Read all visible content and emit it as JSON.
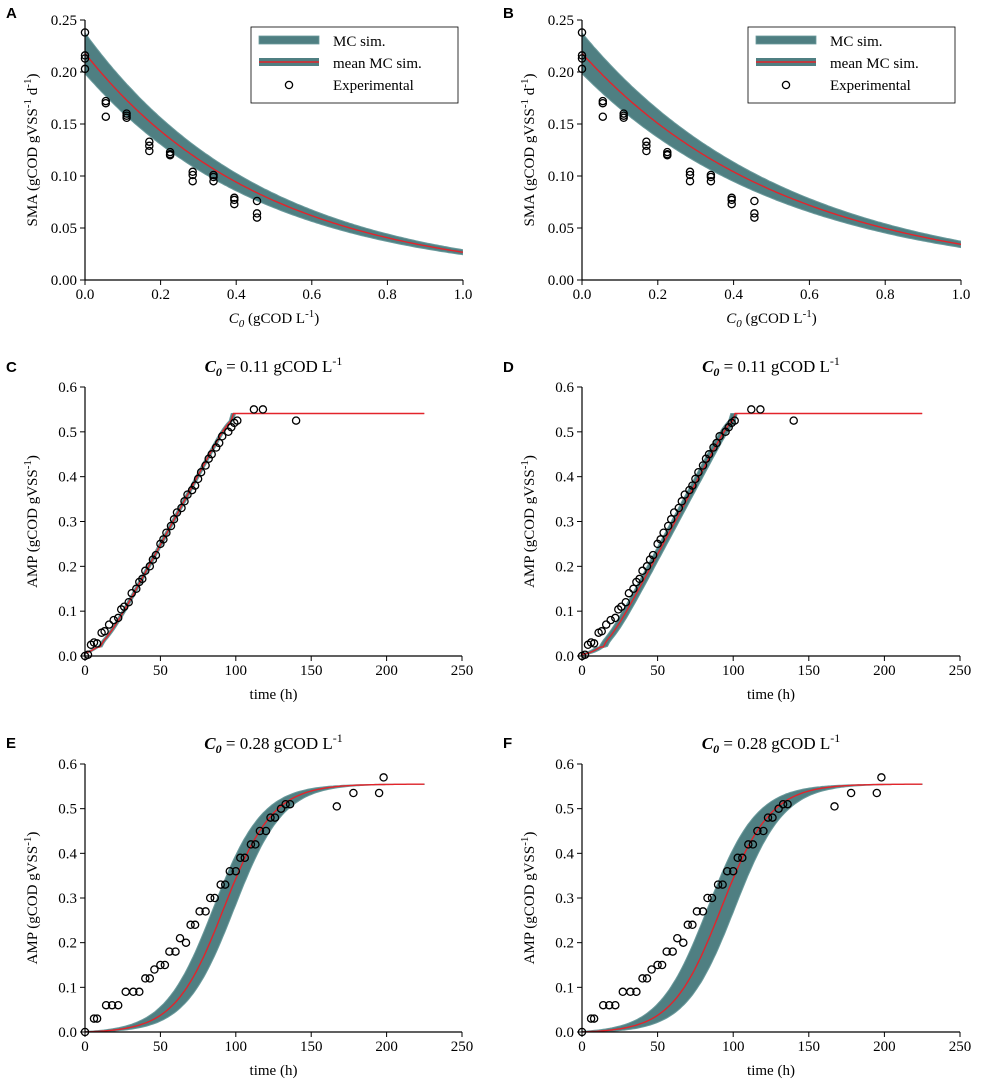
{
  "chart_data": [
    {
      "panel": "A",
      "type": "line",
      "title": "",
      "xlabel": {
        "sym": "C",
        "sub": "0",
        "unit": " (gCOD L",
        "sup": "-1",
        "end": ")"
      },
      "ylabel": {
        "base": "SMA (gCOD gVSS",
        "sup1": "-1",
        "mid": " d",
        "sup2": "-1",
        "end": ")"
      },
      "xlim": [
        0,
        1.0
      ],
      "ylim": [
        0,
        0.25
      ],
      "xticks": [
        "0.0",
        "0.2",
        "0.4",
        "0.6",
        "0.8",
        "1.0"
      ],
      "yticks": [
        "0.00",
        "0.05",
        "0.10",
        "0.15",
        "0.20",
        "0.25"
      ],
      "legend": [
        "MC sim.",
        "mean MC sim.",
        "Experimental"
      ],
      "model": {
        "kind": "decay",
        "a": 0.218,
        "k": 2.1,
        "band": 0.09
      },
      "experimental": {
        "x": [
          0.0,
          0.0,
          0.0,
          0.0,
          0.055,
          0.055,
          0.055,
          0.11,
          0.11,
          0.11,
          0.17,
          0.17,
          0.17,
          0.225,
          0.225,
          0.225,
          0.285,
          0.285,
          0.285,
          0.34,
          0.34,
          0.34,
          0.395,
          0.395,
          0.395,
          0.455,
          0.455,
          0.455
        ],
        "y": [
          0.238,
          0.216,
          0.213,
          0.203,
          0.172,
          0.17,
          0.157,
          0.16,
          0.158,
          0.156,
          0.133,
          0.129,
          0.124,
          0.123,
          0.121,
          0.12,
          0.104,
          0.101,
          0.095,
          0.101,
          0.099,
          0.095,
          0.079,
          0.077,
          0.073,
          0.076,
          0.064,
          0.06
        ]
      }
    },
    {
      "panel": "B",
      "type": "line",
      "title": "",
      "xlabel": {
        "sym": "C",
        "sub": "0",
        "unit": " (gCOD L",
        "sup": "-1",
        "end": ")"
      },
      "ylabel": {
        "base": "SMA (gCOD gVSS",
        "sup1": "-1",
        "mid": " d",
        "sup2": "-1",
        "end": ")"
      },
      "xlim": [
        0,
        1.0
      ],
      "ylim": [
        0,
        0.25
      ],
      "xticks": [
        "0.0",
        "0.2",
        "0.4",
        "0.6",
        "0.8",
        "1.0"
      ],
      "yticks": [
        "0.00",
        "0.05",
        "0.10",
        "0.15",
        "0.20",
        "0.25"
      ],
      "legend": [
        "MC sim.",
        "mean MC sim.",
        "Experimental"
      ],
      "model": {
        "kind": "decay",
        "a": 0.218,
        "k": 1.85,
        "band": 0.09
      },
      "experimental": {
        "x": [
          0.0,
          0.0,
          0.0,
          0.0,
          0.055,
          0.055,
          0.055,
          0.11,
          0.11,
          0.11,
          0.17,
          0.17,
          0.17,
          0.225,
          0.225,
          0.225,
          0.285,
          0.285,
          0.285,
          0.34,
          0.34,
          0.34,
          0.395,
          0.395,
          0.395,
          0.455,
          0.455,
          0.455
        ],
        "y": [
          0.238,
          0.216,
          0.213,
          0.203,
          0.172,
          0.17,
          0.157,
          0.16,
          0.158,
          0.156,
          0.133,
          0.129,
          0.124,
          0.123,
          0.121,
          0.12,
          0.104,
          0.101,
          0.095,
          0.101,
          0.099,
          0.095,
          0.079,
          0.077,
          0.073,
          0.076,
          0.064,
          0.06
        ]
      }
    },
    {
      "panel": "C",
      "type": "line",
      "title": {
        "sym": "C",
        "sub": "0",
        "rest": " = 0.11 gCOD L",
        "sup": "-1"
      },
      "xlabel": {
        "plain": "time (h)"
      },
      "ylabel": {
        "base": "AMP (gCOD gVSS",
        "sup1": "-1",
        "end": ")"
      },
      "xlim": [
        0,
        250
      ],
      "ylim": [
        0,
        0.6
      ],
      "xticks": [
        "0",
        "50",
        "100",
        "150",
        "200",
        "250"
      ],
      "yticks": [
        "0.0",
        "0.1",
        "0.2",
        "0.3",
        "0.4",
        "0.5",
        "0.6"
      ],
      "model": {
        "kind": "sigmoid",
        "plateau": 0.541,
        "rate": 0.0062,
        "lag": 10,
        "sat": 93,
        "xmax": 225,
        "band": 1.2
      },
      "experimental": {
        "x": [
          0,
          2,
          4,
          6,
          8,
          11,
          13,
          16,
          19,
          22,
          24,
          26,
          29,
          31,
          34,
          36,
          38,
          40,
          43,
          45,
          47,
          50,
          52,
          54,
          57,
          59,
          61,
          64,
          66,
          68,
          71,
          73,
          75,
          77,
          80,
          82,
          84,
          87,
          89,
          91,
          95,
          97,
          99,
          101,
          112,
          118,
          140
        ],
        "y": [
          0.0,
          0.003,
          0.025,
          0.03,
          0.028,
          0.052,
          0.055,
          0.07,
          0.08,
          0.085,
          0.104,
          0.11,
          0.12,
          0.14,
          0.15,
          0.165,
          0.172,
          0.19,
          0.2,
          0.215,
          0.225,
          0.25,
          0.26,
          0.275,
          0.29,
          0.305,
          0.32,
          0.33,
          0.345,
          0.36,
          0.37,
          0.38,
          0.395,
          0.41,
          0.425,
          0.44,
          0.45,
          0.465,
          0.475,
          0.49,
          0.5,
          0.51,
          0.52,
          0.525,
          0.55,
          0.55,
          0.525
        ]
      }
    },
    {
      "panel": "D",
      "type": "line",
      "title": {
        "sym": "C",
        "sub": "0",
        "rest": " = 0.11 gCOD L",
        "sup": "-1"
      },
      "xlabel": {
        "plain": "time (h)"
      },
      "ylabel": {
        "base": "AMP (gCOD gVSS",
        "sup1": "-1",
        "end": ")"
      },
      "xlim": [
        0,
        250
      ],
      "ylim": [
        0,
        0.6
      ],
      "xticks": [
        "0",
        "50",
        "100",
        "150",
        "200",
        "250"
      ],
      "yticks": [
        "0.0",
        "0.1",
        "0.2",
        "0.3",
        "0.4",
        "0.5",
        "0.6"
      ],
      "model": {
        "kind": "sigmoid",
        "plateau": 0.541,
        "rate": 0.0063,
        "lag": 14,
        "sat": 102,
        "xmax": 225,
        "band": 2.6
      },
      "experimental": {
        "x": [
          0,
          2,
          4,
          6,
          8,
          11,
          13,
          16,
          19,
          22,
          24,
          26,
          29,
          31,
          34,
          36,
          38,
          40,
          43,
          45,
          47,
          50,
          52,
          54,
          57,
          59,
          61,
          64,
          66,
          68,
          71,
          73,
          75,
          77,
          80,
          82,
          84,
          87,
          89,
          91,
          95,
          97,
          99,
          101,
          112,
          118,
          140
        ],
        "y": [
          0.0,
          0.003,
          0.025,
          0.03,
          0.028,
          0.052,
          0.055,
          0.07,
          0.08,
          0.085,
          0.104,
          0.11,
          0.12,
          0.14,
          0.15,
          0.165,
          0.172,
          0.19,
          0.2,
          0.215,
          0.225,
          0.25,
          0.26,
          0.275,
          0.29,
          0.305,
          0.32,
          0.33,
          0.345,
          0.36,
          0.37,
          0.38,
          0.395,
          0.41,
          0.425,
          0.44,
          0.45,
          0.465,
          0.475,
          0.49,
          0.5,
          0.51,
          0.52,
          0.525,
          0.55,
          0.55,
          0.525
        ]
      }
    },
    {
      "panel": "E",
      "type": "line",
      "title": {
        "sym": "C",
        "sub": "0",
        "rest": " = 0.28 gCOD L",
        "sup": "-1"
      },
      "xlabel": {
        "plain": "time (h)"
      },
      "ylabel": {
        "base": "AMP (gCOD gVSS",
        "sup1": "-1",
        "end": ")"
      },
      "xlim": [
        0,
        250
      ],
      "ylim": [
        0,
        0.6
      ],
      "xticks": [
        "0",
        "50",
        "100",
        "150",
        "200",
        "250"
      ],
      "yticks": [
        "0.0",
        "0.1",
        "0.2",
        "0.3",
        "0.4",
        "0.5",
        "0.6"
      ],
      "model": {
        "kind": "smooth",
        "plateau": 0.555,
        "mid": 92,
        "width": 75,
        "start": 12,
        "xmax": 225,
        "band": 7
      },
      "experimental": {
        "x": [
          0,
          6,
          8,
          14,
          18,
          22,
          27,
          32,
          36,
          40,
          43,
          46,
          50,
          53,
          56,
          60,
          63,
          67,
          70,
          73,
          76,
          80,
          83,
          86,
          90,
          93,
          96,
          100,
          103,
          106,
          110,
          113,
          116,
          120,
          123,
          126,
          130,
          133,
          136,
          167,
          178,
          195,
          198
        ],
        "y": [
          0.0,
          0.03,
          0.03,
          0.06,
          0.06,
          0.06,
          0.09,
          0.09,
          0.09,
          0.12,
          0.12,
          0.14,
          0.15,
          0.15,
          0.18,
          0.18,
          0.21,
          0.2,
          0.24,
          0.24,
          0.27,
          0.27,
          0.3,
          0.3,
          0.33,
          0.33,
          0.36,
          0.36,
          0.39,
          0.39,
          0.42,
          0.42,
          0.45,
          0.45,
          0.48,
          0.48,
          0.5,
          0.51,
          0.51,
          0.505,
          0.535,
          0.535,
          0.57
        ]
      }
    },
    {
      "panel": "F",
      "type": "line",
      "title": {
        "sym": "C",
        "sub": "0",
        "rest": " = 0.28 gCOD L",
        "sup": "-1"
      },
      "xlabel": {
        "plain": "time (h)"
      },
      "ylabel": {
        "base": "AMP (gCOD gVSS",
        "sup1": "-1",
        "end": ")"
      },
      "xlim": [
        0,
        250
      ],
      "ylim": [
        0,
        0.6
      ],
      "xticks": [
        "0",
        "50",
        "100",
        "150",
        "200",
        "250"
      ],
      "yticks": [
        "0.0",
        "0.1",
        "0.2",
        "0.3",
        "0.4",
        "0.5",
        "0.6"
      ],
      "model": {
        "kind": "smooth",
        "plateau": 0.555,
        "mid": 92,
        "width": 75,
        "start": 12,
        "xmax": 225,
        "band": 9
      },
      "experimental": {
        "x": [
          0,
          6,
          8,
          14,
          18,
          22,
          27,
          32,
          36,
          40,
          43,
          46,
          50,
          53,
          56,
          60,
          63,
          67,
          70,
          73,
          76,
          80,
          83,
          86,
          90,
          93,
          96,
          100,
          103,
          106,
          110,
          113,
          116,
          120,
          123,
          126,
          130,
          133,
          136,
          167,
          178,
          195,
          198
        ],
        "y": [
          0.0,
          0.03,
          0.03,
          0.06,
          0.06,
          0.06,
          0.09,
          0.09,
          0.09,
          0.12,
          0.12,
          0.14,
          0.15,
          0.15,
          0.18,
          0.18,
          0.21,
          0.2,
          0.24,
          0.24,
          0.27,
          0.27,
          0.3,
          0.3,
          0.33,
          0.33,
          0.36,
          0.36,
          0.39,
          0.39,
          0.42,
          0.42,
          0.45,
          0.45,
          0.48,
          0.48,
          0.5,
          0.51,
          0.51,
          0.505,
          0.535,
          0.535,
          0.57
        ]
      }
    }
  ],
  "colors": {
    "band": "#4f7f82",
    "band_edge": "#6a9a9c",
    "mean": "#e3242b",
    "marker": "#000000"
  }
}
